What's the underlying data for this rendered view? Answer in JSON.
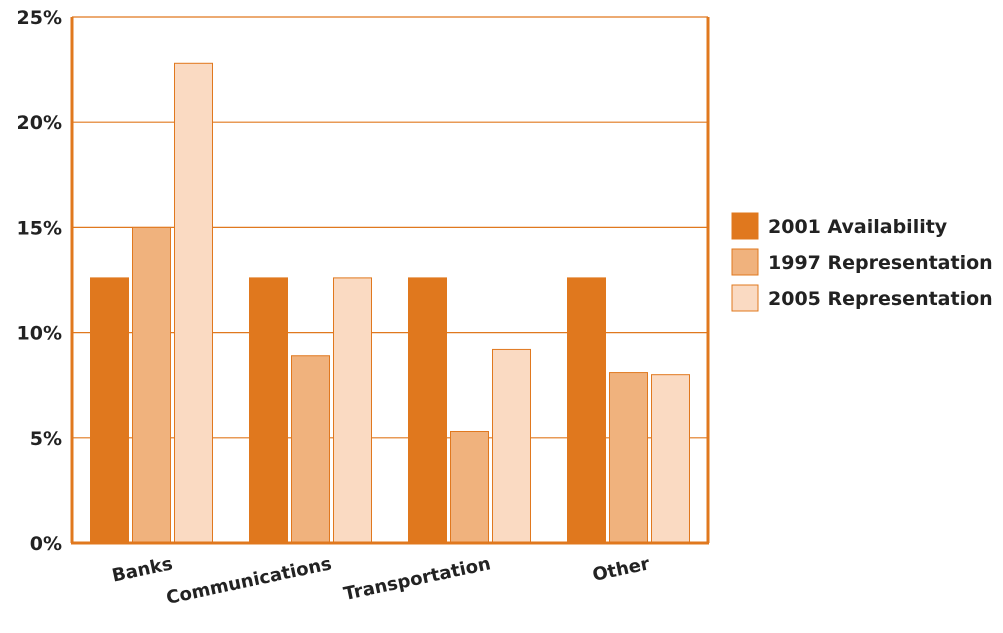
{
  "chart_data": {
    "type": "bar",
    "title": "",
    "xlabel": "",
    "ylabel": "",
    "ylim": [
      0,
      25
    ],
    "ytick_values": [
      0,
      5,
      10,
      15,
      20,
      25
    ],
    "ytick_labels": [
      "0%",
      "5%",
      "10%",
      "15%",
      "20%",
      "25%"
    ],
    "categories": [
      "Banks",
      "Communications",
      "Transportation",
      "Other"
    ],
    "series": [
      {
        "name": "2001 Availability",
        "values": [
          12.6,
          12.6,
          12.6,
          12.6
        ],
        "color": "#e0781e"
      },
      {
        "name": "1997 Representation",
        "values": [
          15.0,
          8.9,
          5.3,
          8.1
        ],
        "color": "#f0b27d"
      },
      {
        "name": "2005 Representation",
        "values": [
          22.8,
          12.6,
          9.2,
          8.0
        ],
        "color": "#fadac2"
      }
    ],
    "grid": true,
    "legend_position": "right",
    "accent_color": "#e0781e"
  }
}
